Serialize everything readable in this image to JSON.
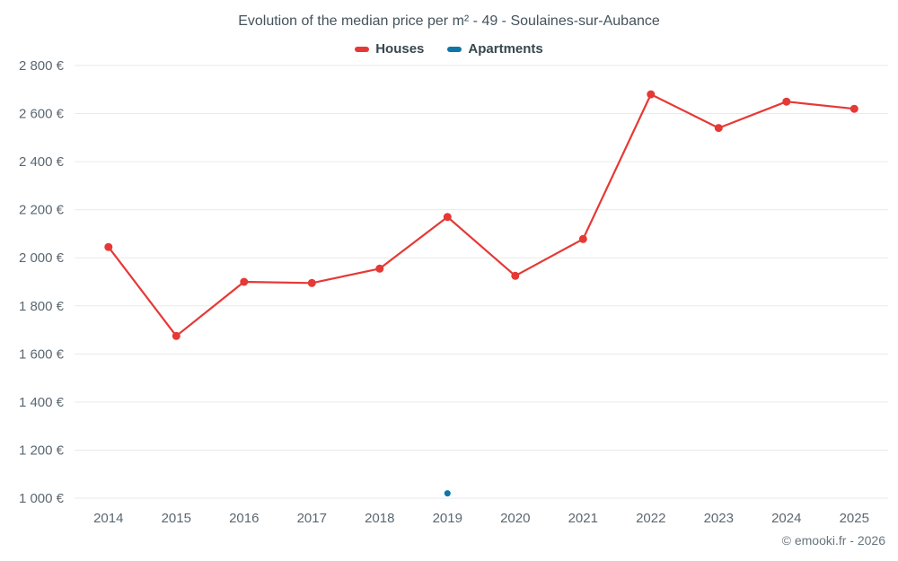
{
  "page": {
    "attribution": "© emooki.fr - 2026"
  },
  "chart_data": {
    "type": "line",
    "title": "Evolution of the median price per m² - 49 - Soulaines-sur-Aubance",
    "xlabel": "",
    "ylabel": "",
    "categories": [
      "2014",
      "2015",
      "2016",
      "2017",
      "2018",
      "2019",
      "2020",
      "2021",
      "2022",
      "2023",
      "2024",
      "2025"
    ],
    "series": [
      {
        "name": "Houses",
        "color": "#e53935",
        "point_radius": 4.5,
        "values": [
          2045,
          1675,
          1900,
          1895,
          1955,
          2170,
          1925,
          2078,
          2680,
          2540,
          2650,
          2620
        ]
      },
      {
        "name": "Apartments",
        "color": "#0e76a8",
        "point_radius": 3.5,
        "values": [
          null,
          null,
          null,
          null,
          null,
          1020,
          null,
          null,
          null,
          null,
          null,
          null
        ]
      }
    ],
    "ylim": [
      1000,
      2800
    ],
    "y_ticks": [
      {
        "value": 1000,
        "label": "1 000 €"
      },
      {
        "value": 1200,
        "label": "1 200 €"
      },
      {
        "value": 1400,
        "label": "1 400 €"
      },
      {
        "value": 1600,
        "label": "1 600 €"
      },
      {
        "value": 1800,
        "label": "1 800 €"
      },
      {
        "value": 2000,
        "label": "2 000 €"
      },
      {
        "value": 2200,
        "label": "2 200 €"
      },
      {
        "value": 2400,
        "label": "2 400 €"
      },
      {
        "value": 2600,
        "label": "2 600 €"
      },
      {
        "value": 2800,
        "label": "2 800 €"
      }
    ],
    "grid": "horizontal",
    "grid_color": "#e9eaec",
    "legend_position": "top",
    "currency": "EUR"
  }
}
